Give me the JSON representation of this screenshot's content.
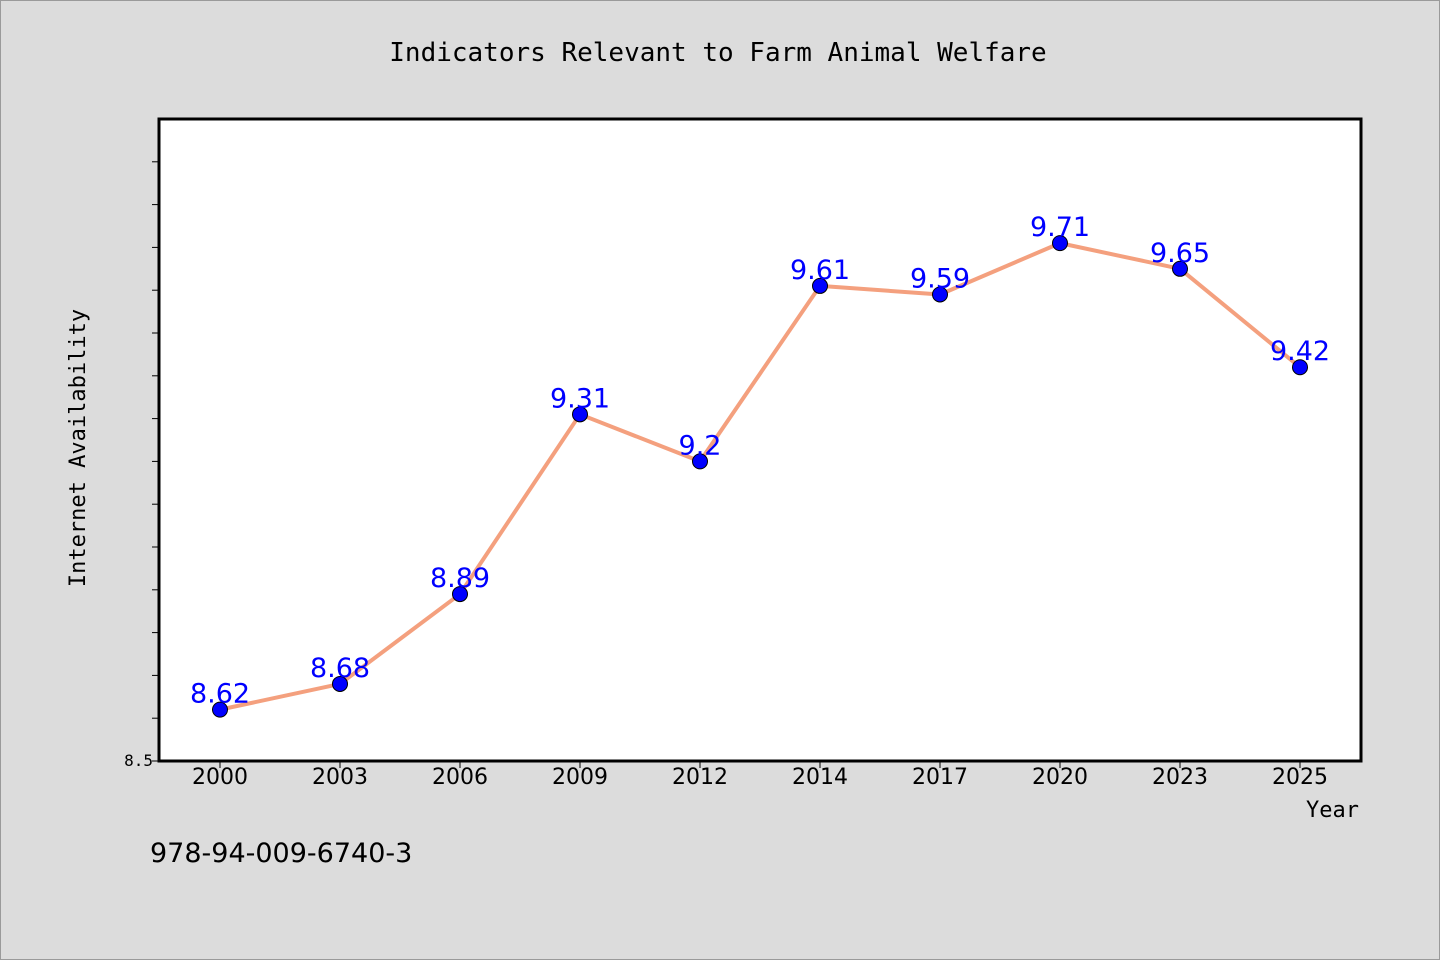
{
  "chart_data": {
    "type": "line",
    "title": "Indicators Relevant to Farm Animal Welfare",
    "xlabel": "Year",
    "ylabel": "Internet Availability",
    "categories": [
      "2000",
      "2003",
      "2006",
      "2009",
      "2012",
      "2014",
      "2017",
      "2020",
      "2023",
      "2025"
    ],
    "series": [
      {
        "values": [
          8.62,
          8.68,
          8.89,
          9.31,
          9.2,
          9.61,
          9.59,
          9.71,
          9.65,
          9.42
        ],
        "labels": [
          "8.62",
          "8.68",
          "8.89",
          "9.31",
          "9.2",
          "9.61",
          "9.59",
          "9.71",
          "9.65",
          "9.42"
        ]
      }
    ],
    "ylim": [
      8.5,
      10.0
    ],
    "y_tick_labels": [
      "8.5"
    ],
    "grid": false,
    "legend": "none"
  },
  "footer": {
    "isbn": "978-94-009-6740-3"
  },
  "colors": {
    "background": "#dcdcdc",
    "plot_area": "#ffffff",
    "line": "#f4a07e",
    "marker": "#0000ff",
    "data_label": "#0000ff",
    "text": "#000000"
  }
}
